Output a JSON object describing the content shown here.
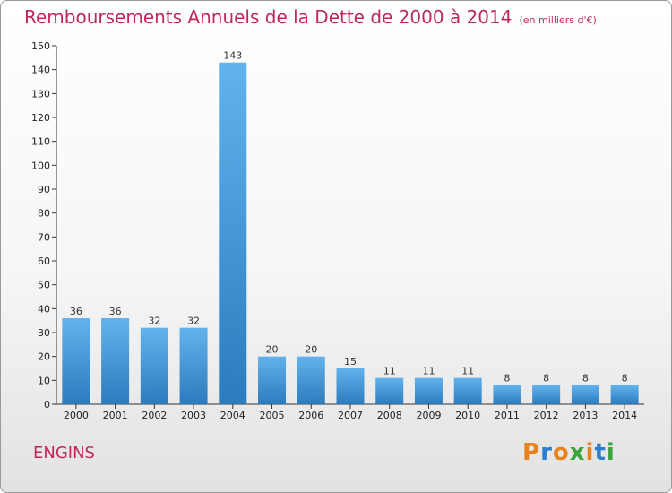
{
  "header": {
    "title": "Remboursements Annuels de la Dette de 2000 à 2014",
    "subtitle": "(en milliers d'€)"
  },
  "footer": {
    "place": "ENGINS",
    "logo": "Proxiti"
  },
  "colors": {
    "title": "#c0275a",
    "bar_top": "#62b3ec",
    "bar_bottom": "#2b7bbf",
    "logo_letters": [
      "#e8821c",
      "#2d7fd0",
      "#e8821c",
      "#3aa53a",
      "#e8821c",
      "#2d7fd0",
      "#3aa53a"
    ]
  },
  "chart_data": {
    "type": "bar",
    "categories": [
      "2000",
      "2001",
      "2002",
      "2003",
      "2004",
      "2005",
      "2006",
      "2007",
      "2008",
      "2009",
      "2010",
      "2011",
      "2012",
      "2013",
      "2014"
    ],
    "values": [
      36,
      36,
      32,
      32,
      143,
      20,
      20,
      15,
      11,
      11,
      11,
      8,
      8,
      8,
      8
    ],
    "ylim": [
      0,
      150
    ],
    "yticks": [
      0,
      10,
      20,
      30,
      40,
      50,
      60,
      70,
      80,
      90,
      100,
      110,
      120,
      130,
      140,
      150
    ],
    "grid": false,
    "legend": "none"
  }
}
